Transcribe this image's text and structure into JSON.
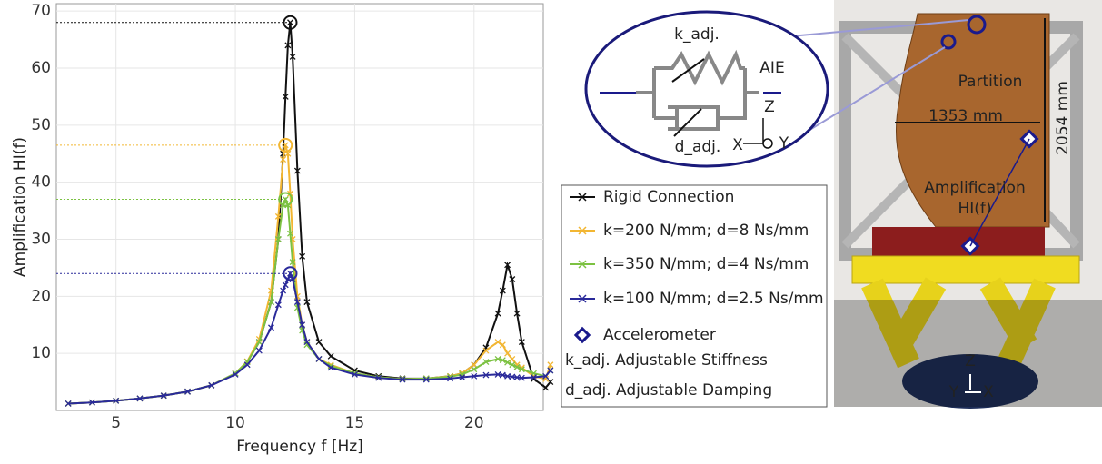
{
  "chart_data": {
    "type": "line",
    "x_label": "Frequency f [Hz]",
    "y_label": "Amplification HI(f)",
    "x": [
      3,
      4,
      5,
      6,
      7,
      8,
      9,
      10,
      10.5,
      11,
      11.5,
      11.8,
      12,
      12.1,
      12.2,
      12.3,
      12.4,
      12.6,
      12.8,
      13,
      13.5,
      14,
      15,
      16,
      17,
      18,
      19,
      19.5,
      20,
      20.5,
      21,
      21.2,
      21.4,
      21.6,
      21.8,
      22,
      22.5,
      23,
      23.2
    ],
    "series": [
      {
        "name": "Rigid Connection",
        "color": "#111111",
        "values": [
          1.2,
          1.4,
          1.7,
          2.1,
          2.6,
          3.3,
          4.4,
          6.5,
          8.5,
          12,
          19,
          30,
          45,
          55,
          64,
          68,
          62,
          42,
          27,
          19,
          12,
          9.5,
          7,
          6,
          5.6,
          5.6,
          6,
          6.5,
          8,
          11,
          17,
          21,
          25.5,
          23,
          17,
          12,
          5.5,
          4,
          5
        ]
      },
      {
        "name": "k=200 N/mm; d=8 Ns/mm",
        "color": "#f2b632",
        "values": [
          1.2,
          1.4,
          1.7,
          2.1,
          2.6,
          3.3,
          4.4,
          6.5,
          8.6,
          12.5,
          21,
          34,
          44,
          46.5,
          45,
          38,
          30,
          20,
          15,
          12,
          9,
          8,
          6.5,
          5.8,
          5.5,
          5.6,
          6,
          6.5,
          8,
          10.5,
          12,
          11.5,
          10,
          9,
          8,
          7.5,
          6,
          5.5,
          8
        ]
      },
      {
        "name": "k=350 N/mm; d=4 Ns/mm",
        "color": "#7cc242",
        "values": [
          1.2,
          1.4,
          1.7,
          2.1,
          2.6,
          3.3,
          4.4,
          6.5,
          8.5,
          12,
          19,
          30,
          36,
          37,
          36,
          31,
          26,
          18,
          14,
          11.5,
          9,
          7.8,
          6.5,
          5.8,
          5.5,
          5.6,
          5.9,
          6.3,
          7.2,
          8.5,
          9,
          8.8,
          8.4,
          8,
          7.6,
          7.2,
          6.5,
          6,
          7
        ]
      },
      {
        "name": "k=100 N/mm; d=2.5 Ns/mm",
        "color": "#2a2a9a",
        "values": [
          1.2,
          1.4,
          1.7,
          2.1,
          2.6,
          3.3,
          4.4,
          6.3,
          8,
          10.5,
          14.5,
          18.5,
          21,
          22,
          23,
          24,
          23,
          19,
          15,
          12,
          9,
          7.5,
          6.3,
          5.7,
          5.4,
          5.4,
          5.6,
          5.8,
          6,
          6.2,
          6.3,
          6.2,
          6,
          5.9,
          5.8,
          5.7,
          5.8,
          6,
          7
        ]
      }
    ],
    "xlim": [
      2.5,
      22.9
    ],
    "ylim": [
      0,
      71.3
    ],
    "xticks": [
      5,
      10,
      15,
      20
    ],
    "yticks": [
      10,
      20,
      30,
      40,
      50,
      60,
      70
    ],
    "grid": true,
    "legend_extra": [
      "Accelerometer",
      "k_adj. Adjustable Stiffness",
      "d_adj. Adjustable Damping"
    ],
    "annotations": [
      "k_adj.",
      "AIE",
      "d_adj.",
      "Z",
      "X",
      "Y",
      "Partition",
      "1353 mm",
      "2054 mm",
      "Amplification",
      "HI(f)",
      "Z",
      "Y",
      "X"
    ]
  }
}
